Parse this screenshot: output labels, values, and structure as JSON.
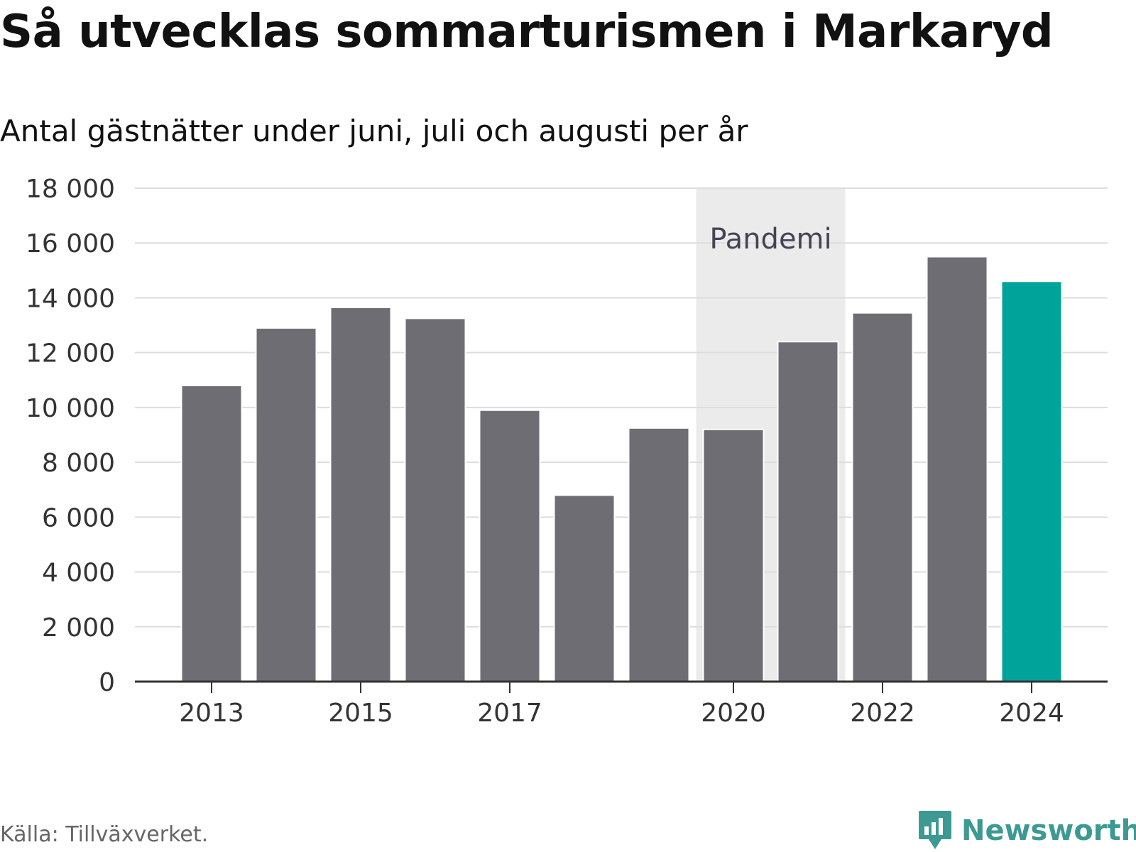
{
  "header": {
    "title": "Så utvecklas sommarturismen i Markaryd",
    "subtitle": "Antal gästnätter under juni, juli och augusti per år"
  },
  "chart_data": {
    "type": "bar",
    "categories": [
      "2013",
      "2014",
      "2015",
      "2016",
      "2017",
      "2018",
      "2019",
      "2020",
      "2021",
      "2022",
      "2023",
      "2024"
    ],
    "values": [
      10800,
      12900,
      13650,
      13250,
      9900,
      6800,
      9250,
      9200,
      12400,
      13450,
      15500,
      14600
    ],
    "x_tick_labels": [
      "2013",
      "",
      "2015",
      "",
      "2017",
      "",
      "",
      "2020",
      "",
      "2022",
      "",
      "2024"
    ],
    "y_ticks": [
      0,
      2000,
      4000,
      6000,
      8000,
      10000,
      12000,
      14000,
      16000,
      18000
    ],
    "y_tick_labels": [
      "0",
      "2 000",
      "4 000",
      "6 000",
      "8 000",
      "10 000",
      "12 000",
      "14 000",
      "16 000",
      "18 000"
    ],
    "ylim": [
      0,
      18000
    ],
    "grid": true,
    "highlight_category": "2024",
    "shaded_region": {
      "label": "Pandemi",
      "from": "2020",
      "to": "2021"
    },
    "colors": {
      "bar": "#6e6d73",
      "highlight": "#00a39a",
      "shade": "#ebebeb",
      "grid": "#dddddd",
      "axis": "#333333"
    }
  },
  "footer": {
    "source": "Källa: Tillväxverket.",
    "brand": "Newsworthy",
    "brand_icon": "newsworthy-logo-icon",
    "brand_color": "#3d9a92"
  }
}
